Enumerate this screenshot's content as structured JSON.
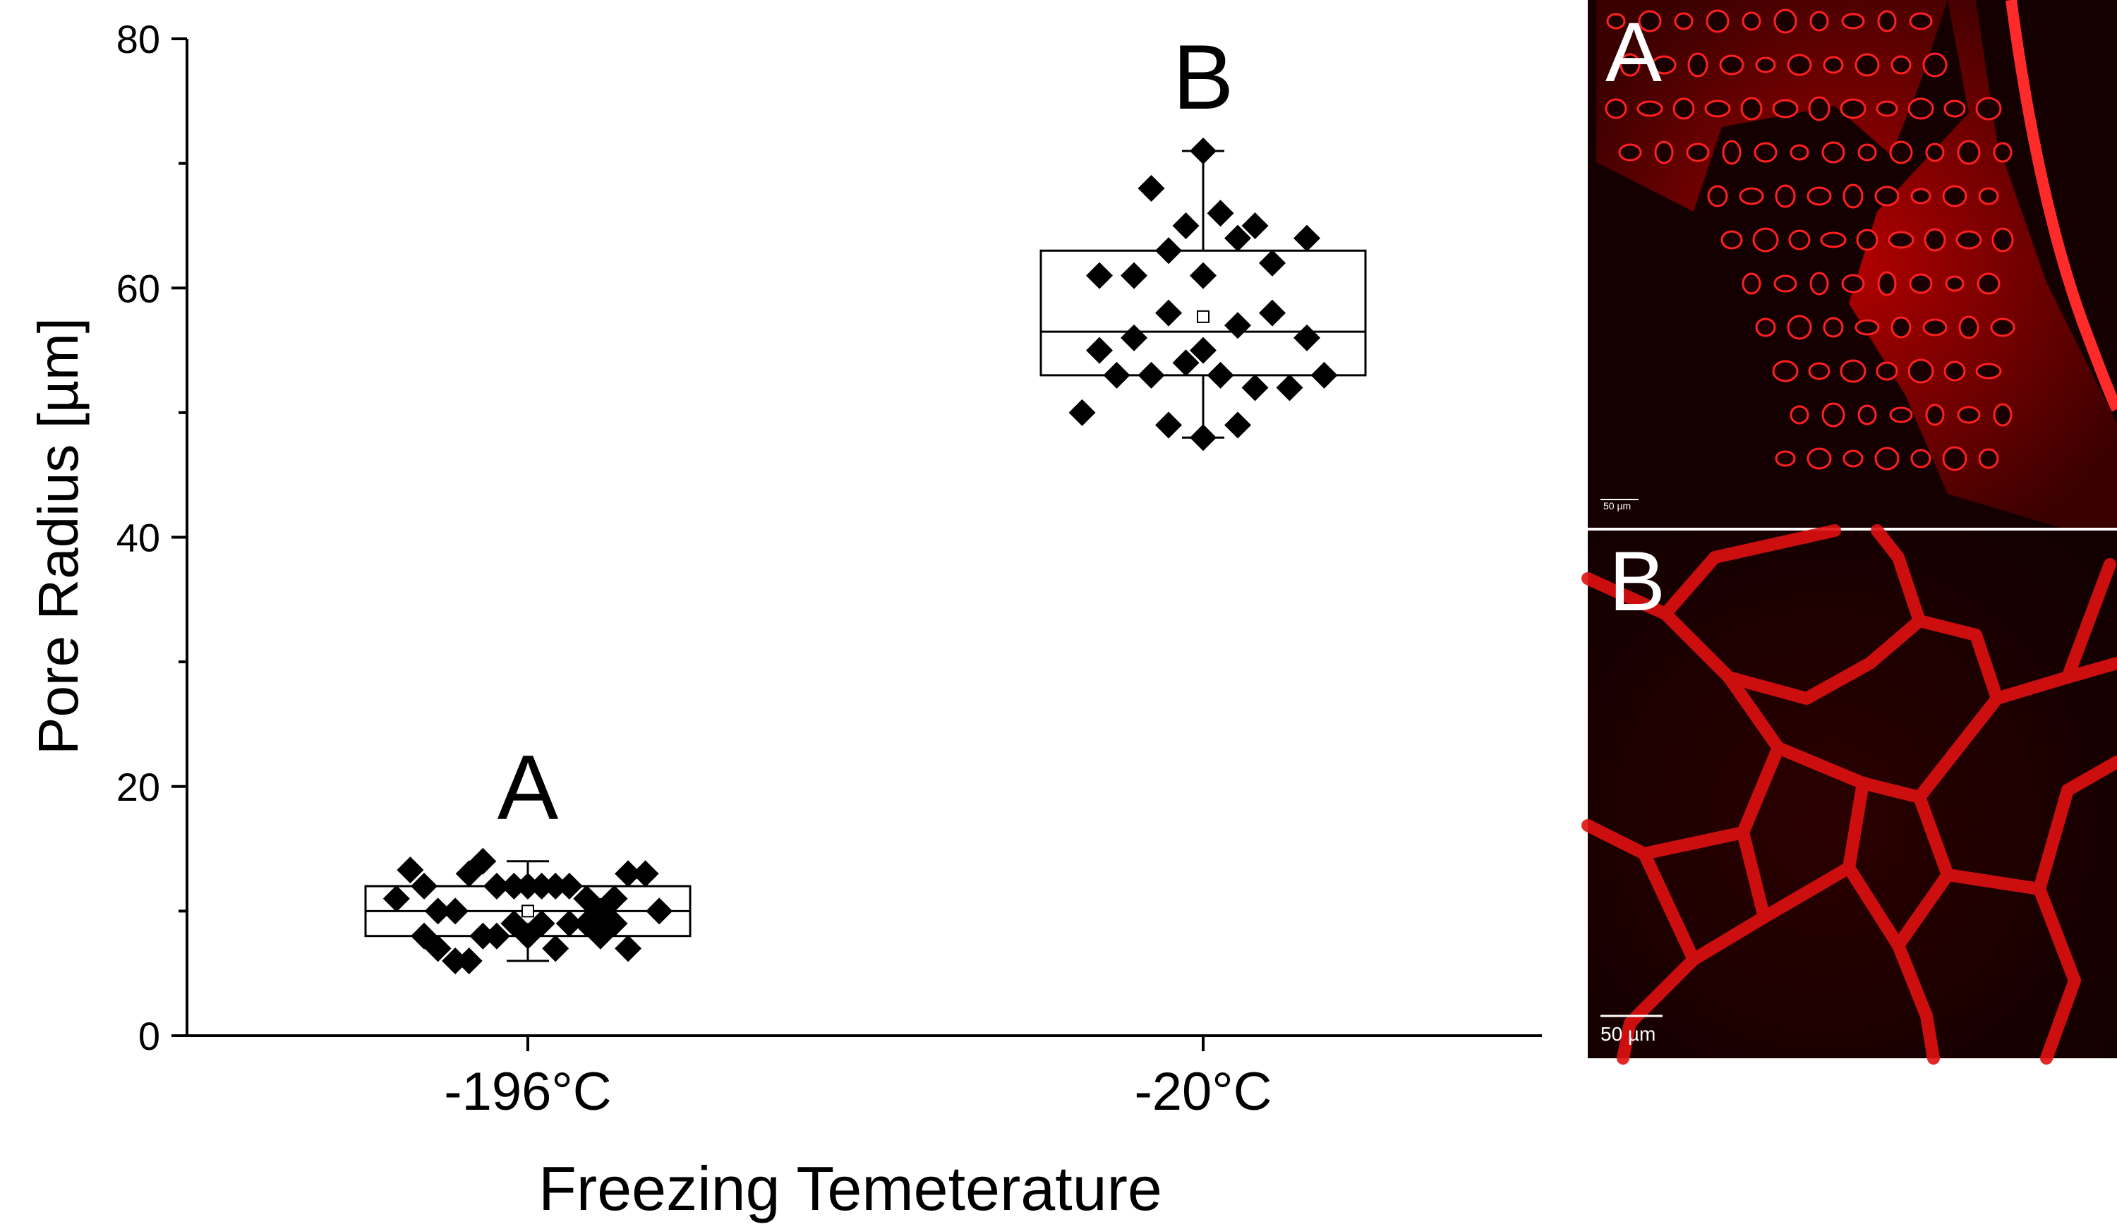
{
  "chart_data": {
    "type": "box",
    "ylabel": "Pore Radius [µm]",
    "xlabel": "Freezing Temeterature",
    "ylim": [
      0,
      80
    ],
    "yticks": [
      0,
      20,
      40,
      60,
      80
    ],
    "grid": false,
    "categories": [
      "-196°C",
      "-20°C"
    ],
    "groups": [
      {
        "category": "-196°C",
        "letter": "A",
        "box": {
          "q1": 8,
          "median": 10,
          "q3": 12,
          "mean": 10,
          "whisker_low": 6,
          "whisker_high": 14
        },
        "points": [
          {
            "dx": -0.38,
            "y": 11
          },
          {
            "dx": -0.34,
            "y": 13.3
          },
          {
            "dx": -0.3,
            "y": 12
          },
          {
            "dx": -0.3,
            "y": 8
          },
          {
            "dx": -0.26,
            "y": 10
          },
          {
            "dx": -0.26,
            "y": 7
          },
          {
            "dx": -0.21,
            "y": 6
          },
          {
            "dx": -0.21,
            "y": 10
          },
          {
            "dx": -0.17,
            "y": 13
          },
          {
            "dx": -0.17,
            "y": 6
          },
          {
            "dx": -0.13,
            "y": 14
          },
          {
            "dx": -0.13,
            "y": 8
          },
          {
            "dx": -0.09,
            "y": 12
          },
          {
            "dx": -0.09,
            "y": 8
          },
          {
            "dx": -0.04,
            "y": 12
          },
          {
            "dx": -0.04,
            "y": 9
          },
          {
            "dx": 0.0,
            "y": 12
          },
          {
            "dx": 0.0,
            "y": 8
          },
          {
            "dx": 0.04,
            "y": 12
          },
          {
            "dx": 0.04,
            "y": 9
          },
          {
            "dx": 0.08,
            "y": 12
          },
          {
            "dx": 0.08,
            "y": 7
          },
          {
            "dx": 0.12,
            "y": 12
          },
          {
            "dx": 0.12,
            "y": 9
          },
          {
            "dx": 0.17,
            "y": 11
          },
          {
            "dx": 0.17,
            "y": 9
          },
          {
            "dx": 0.21,
            "y": 10
          },
          {
            "dx": 0.21,
            "y": 8
          },
          {
            "dx": 0.25,
            "y": 11
          },
          {
            "dx": 0.25,
            "y": 9
          },
          {
            "dx": 0.29,
            "y": 13
          },
          {
            "dx": 0.29,
            "y": 7
          },
          {
            "dx": 0.34,
            "y": 13
          },
          {
            "dx": 0.38,
            "y": 10
          }
        ]
      },
      {
        "category": "-20°C",
        "letter": "B",
        "box": {
          "q1": 53,
          "median": 56.5,
          "q3": 63,
          "mean": 57.7,
          "whisker_low": 48,
          "whisker_high": 71
        },
        "points": [
          {
            "dx": -0.35,
            "y": 50
          },
          {
            "dx": -0.3,
            "y": 61
          },
          {
            "dx": -0.3,
            "y": 55
          },
          {
            "dx": -0.25,
            "y": 53
          },
          {
            "dx": -0.2,
            "y": 61
          },
          {
            "dx": -0.2,
            "y": 56
          },
          {
            "dx": -0.15,
            "y": 68
          },
          {
            "dx": -0.15,
            "y": 53
          },
          {
            "dx": -0.1,
            "y": 63
          },
          {
            "dx": -0.1,
            "y": 58
          },
          {
            "dx": -0.1,
            "y": 49
          },
          {
            "dx": -0.05,
            "y": 65
          },
          {
            "dx": -0.05,
            "y": 54
          },
          {
            "dx": 0.0,
            "y": 71
          },
          {
            "dx": 0.0,
            "y": 61
          },
          {
            "dx": 0.0,
            "y": 55
          },
          {
            "dx": 0.0,
            "y": 48
          },
          {
            "dx": 0.05,
            "y": 66
          },
          {
            "dx": 0.05,
            "y": 53
          },
          {
            "dx": 0.1,
            "y": 64
          },
          {
            "dx": 0.1,
            "y": 57
          },
          {
            "dx": 0.1,
            "y": 49
          },
          {
            "dx": 0.15,
            "y": 65
          },
          {
            "dx": 0.15,
            "y": 52
          },
          {
            "dx": 0.2,
            "y": 62
          },
          {
            "dx": 0.2,
            "y": 58
          },
          {
            "dx": 0.25,
            "y": 52
          },
          {
            "dx": 0.3,
            "y": 64
          },
          {
            "dx": 0.3,
            "y": 56
          },
          {
            "dx": 0.35,
            "y": 53
          }
        ]
      }
    ]
  },
  "micrographs": [
    {
      "label": "A",
      "scale_bar": "50 µm",
      "color": "#ff1a1a"
    },
    {
      "label": "B",
      "scale_bar": "50 µm",
      "color": "#ff1a1a"
    }
  ]
}
